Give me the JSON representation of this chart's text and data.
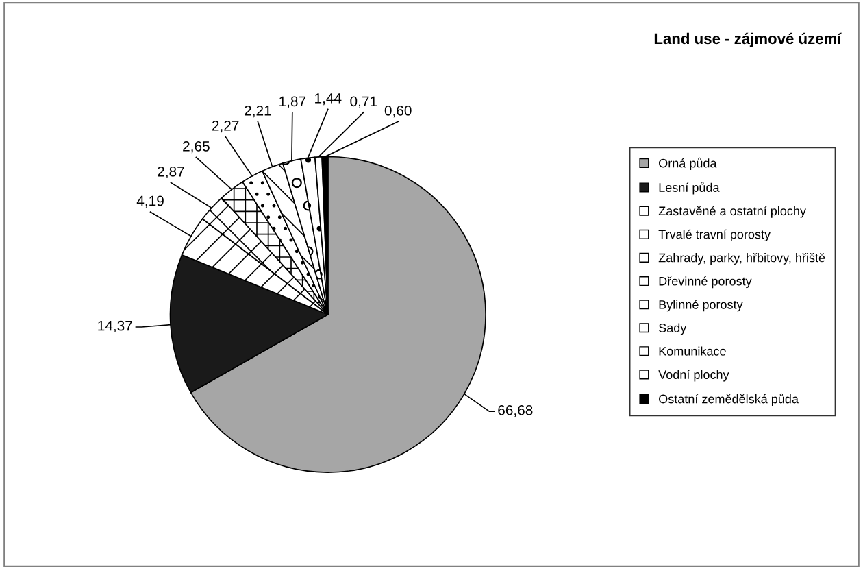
{
  "chart_data": {
    "type": "pie",
    "title": "Land use - zájmové území",
    "categories": [
      "Orná půda",
      "Lesní půda",
      "Zastavěné a ostatní plochy",
      "Trvalé travní porosty",
      "Zahrady, parky, hřbitovy, hřiště",
      "Dřevinné porosty",
      "Bylinné porosty",
      "Sady",
      "Komunikace",
      "Vodní plochy",
      "Ostatní zemědělská půda"
    ],
    "values": [
      66.68,
      14.37,
      4.19,
      2.87,
      2.65,
      2.27,
      2.21,
      1.87,
      1.44,
      0.71,
      0.6
    ],
    "value_labels": [
      "66,68",
      "14,37",
      "4,19",
      "2,87",
      "2,65",
      "2,27",
      "2,21",
      "1,87",
      "1,44",
      "0,71",
      "0,60"
    ],
    "colors": [
      "#a6a6a6",
      "#1a1a1a",
      "#ffffff",
      "#ffffff",
      "#ffffff",
      "#ffffff",
      "#ffffff",
      "#ffffff",
      "#ffffff",
      "#ffffff",
      "#000000"
    ],
    "legend": "right"
  }
}
